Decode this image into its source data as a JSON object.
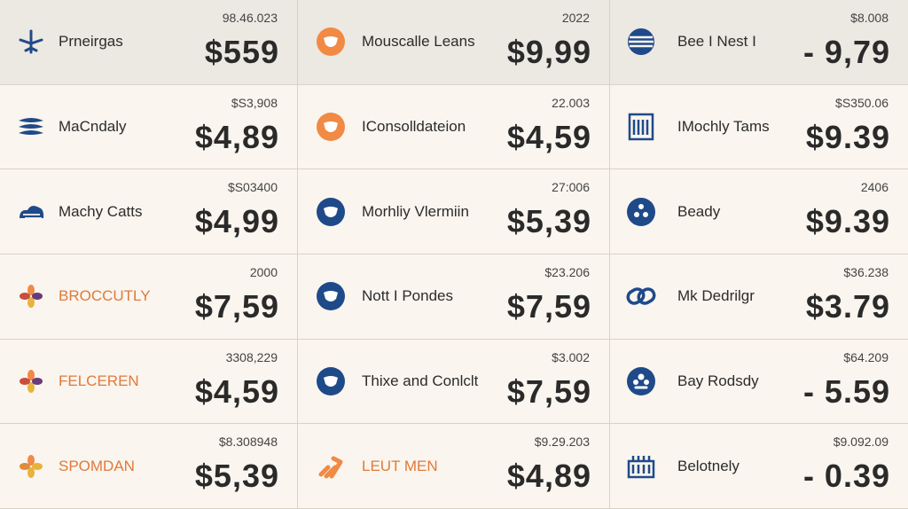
{
  "colors": {
    "background": "#faf5ee",
    "header_background": "#ece8e2",
    "navy": "#1f4a8a",
    "orange": "#f08a45",
    "text": "#2a2a2a"
  },
  "rows": [
    [
      {
        "name": "Prneirgas",
        "sub": "98.46.023",
        "price": "$559",
        "icon": "plane-icon"
      },
      {
        "name": "Mouscalle Leans",
        "sub": "2022",
        "price": "$9,99",
        "icon": "cow-icon"
      },
      {
        "name": "Bee I Nest I",
        "sub": "$8.008",
        "price": "- 9,79",
        "icon": "globe-icon"
      }
    ],
    [
      {
        "name": "MaCndaly",
        "sub": "$S3,908",
        "price": "$4,89",
        "icon": "fish-icon"
      },
      {
        "name": "IConsolldateion",
        "sub": "22.003",
        "price": "$4,59",
        "icon": "cow-icon"
      },
      {
        "name": "IMochly Tams",
        "sub": "$S350.06",
        "price": "$9.39",
        "icon": "calendar-icon"
      }
    ],
    [
      {
        "name": "Machy Catts",
        "sub": "$S03400",
        "price": "$4,99",
        "icon": "cloud-icon"
      },
      {
        "name": "Morhliy Vlermiin",
        "sub": "27:006",
        "price": "$5,39",
        "icon": "cow-icon"
      },
      {
        "name": "Beady",
        "sub": "2406",
        "price": "$9.39",
        "icon": "dots-icon"
      }
    ],
    [
      {
        "name": "BROCCUTLY",
        "sub": "2000",
        "price": "$7,59",
        "icon": "flower-icon",
        "orange": true
      },
      {
        "name": "Nott I Pondes",
        "sub": "$23.206",
        "price": "$7,59",
        "icon": "cow-icon"
      },
      {
        "name": "Mk Dedrilgr",
        "sub": "$36.238",
        "price": "$3.79",
        "icon": "link-icon"
      }
    ],
    [
      {
        "name": "FELCEREN",
        "sub": "3308,229",
        "price": "$4,59",
        "icon": "flower-icon",
        "orange": true
      },
      {
        "name": "Thixe and Conlclt",
        "sub": "$3.002",
        "price": "$7,59",
        "icon": "cow-icon"
      },
      {
        "name": "Bay Rodsdy",
        "sub": "$64.209",
        "price": "- 5.59",
        "icon": "bear-icon"
      }
    ],
    [
      {
        "name": "SPOMDAN",
        "sub": "$8.308948",
        "price": "$5,39",
        "icon": "flower-icon",
        "orange": true
      },
      {
        "name": "LEUT MEN",
        "sub": "$9.29.203",
        "price": "$4,89",
        "icon": "chain-icon",
        "orange": true
      },
      {
        "name": "Belotnely",
        "sub": "$9.092.09",
        "price": "- 0.39",
        "icon": "building-icon"
      }
    ]
  ]
}
